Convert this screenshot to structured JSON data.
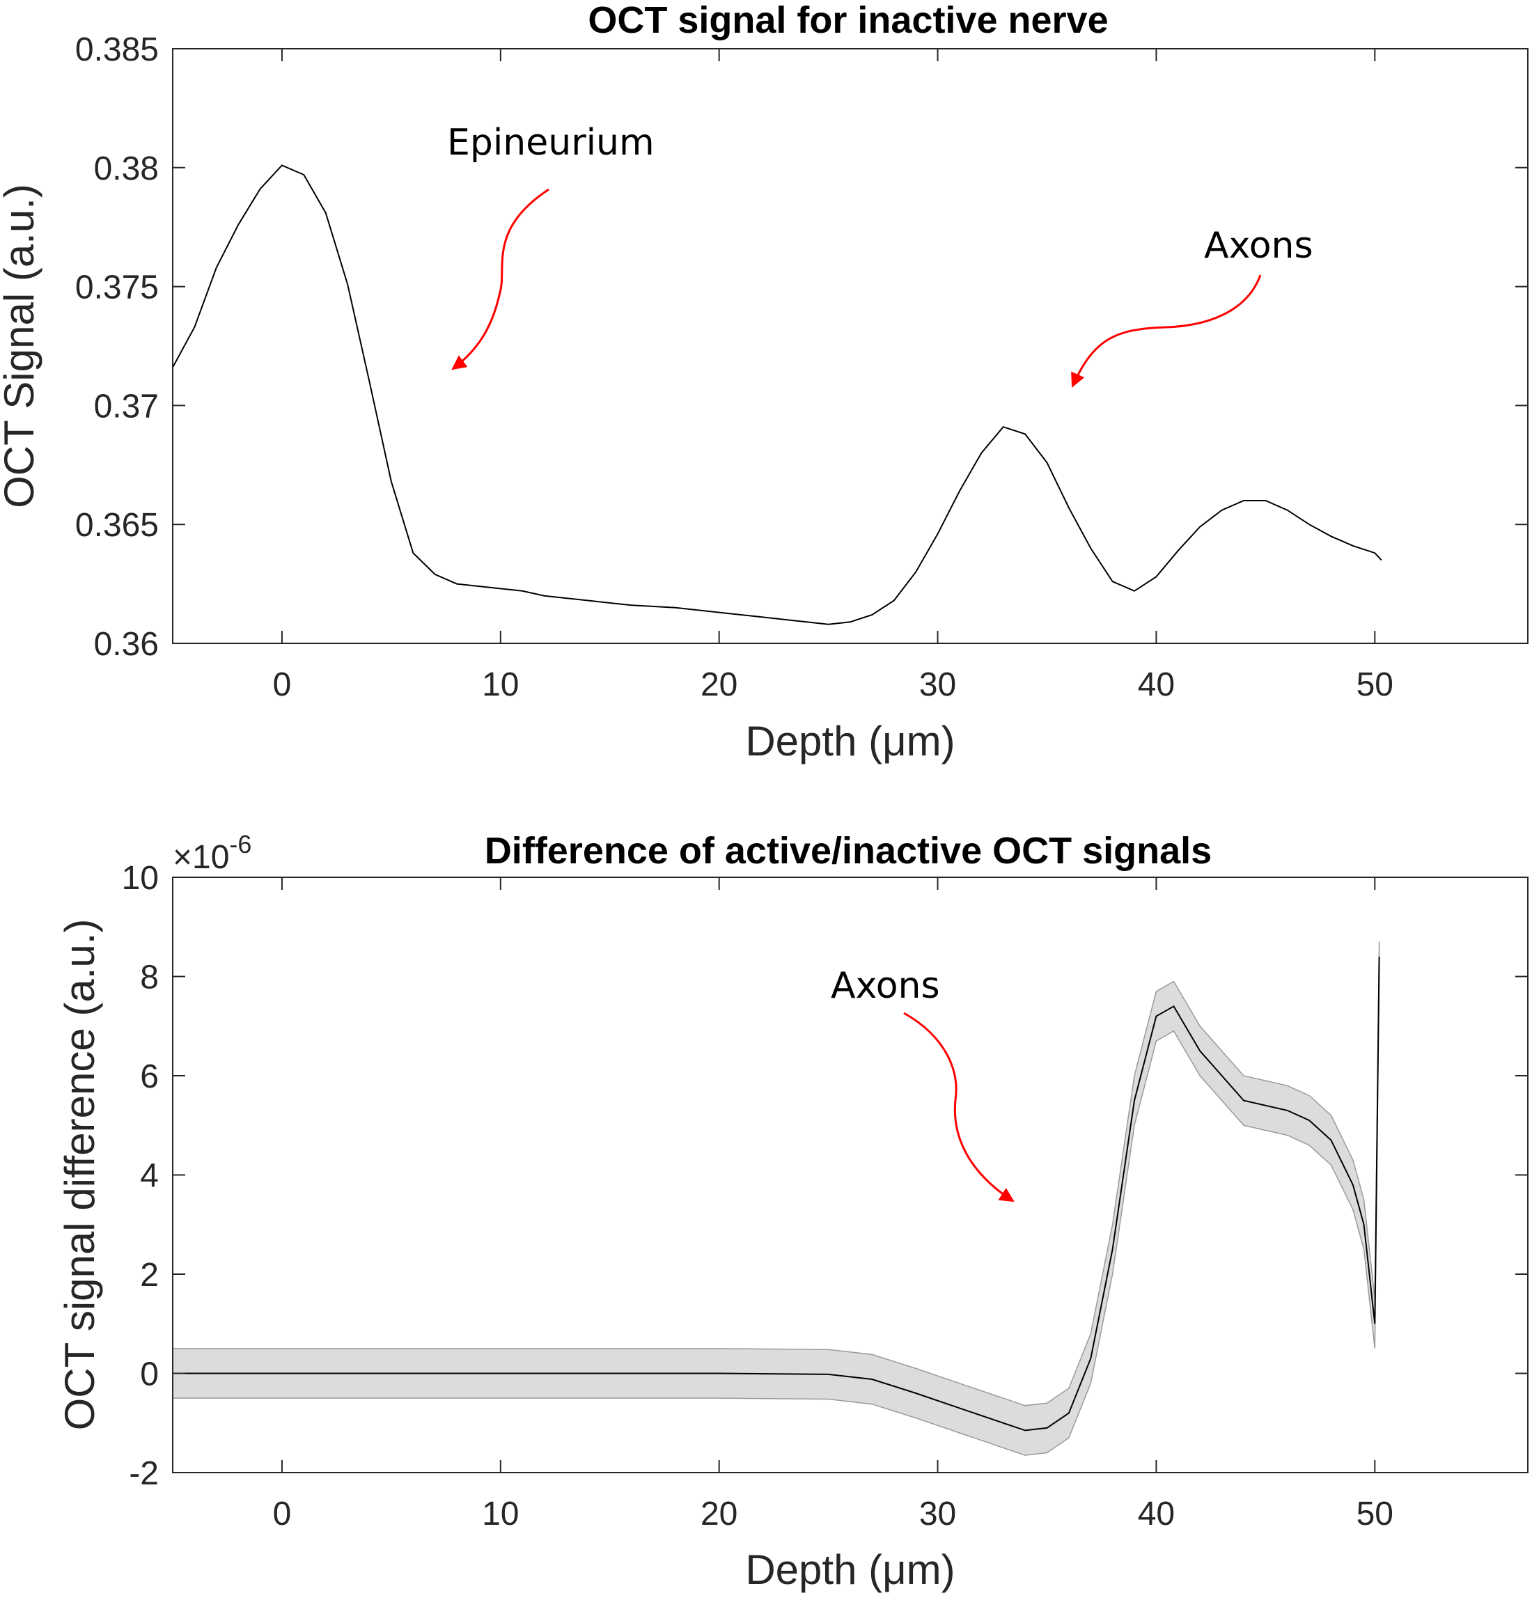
{
  "chart_data": [
    {
      "type": "line",
      "title": "OCT signal for inactive nerve",
      "xlabel": "Depth (μm)",
      "ylabel": "OCT Signal (a.u.)",
      "xlim": [
        -5,
        57
      ],
      "ylim": [
        0.36,
        0.385
      ],
      "xticks": [
        0,
        10,
        20,
        30,
        40,
        50
      ],
      "yticks": [
        0.36,
        0.365,
        0.37,
        0.375,
        0.38,
        0.385
      ],
      "ytick_labels": [
        "0.36",
        "0.365",
        "0.37",
        "0.375",
        "0.38",
        "0.385"
      ],
      "grid": false,
      "series": [
        {
          "color": "#000000",
          "x": [
            -5,
            -4,
            -3,
            -2,
            -1,
            0,
            1,
            2,
            3,
            4,
            5,
            6,
            7,
            8,
            9,
            10,
            11,
            12,
            14,
            16,
            18,
            20,
            22,
            24,
            25,
            26,
            27,
            28,
            29,
            30,
            31,
            32,
            33,
            34,
            35,
            36,
            37,
            38,
            39,
            40,
            41,
            42,
            43,
            44,
            45,
            46,
            47,
            48,
            49,
            50,
            50.3
          ],
          "y": [
            0.3716,
            0.3733,
            0.3758,
            0.3776,
            0.3791,
            0.3801,
            0.3797,
            0.3781,
            0.3751,
            0.371,
            0.3668,
            0.3638,
            0.3629,
            0.3625,
            0.3624,
            0.3623,
            0.3622,
            0.362,
            0.3618,
            0.3616,
            0.3615,
            0.3613,
            0.3611,
            0.3609,
            0.3608,
            0.3609,
            0.3612,
            0.3618,
            0.363,
            0.3646,
            0.3664,
            0.368,
            0.3691,
            0.3688,
            0.3676,
            0.3657,
            0.364,
            0.3626,
            0.3622,
            0.3628,
            0.3639,
            0.3649,
            0.3656,
            0.366,
            0.366,
            0.3656,
            0.365,
            0.3645,
            0.3641,
            0.3638,
            0.3635
          ]
        }
      ],
      "annotations": [
        {
          "text": "Epineurium",
          "color": "#ff0000"
        },
        {
          "text": "Axons",
          "color": "#ff0000"
        }
      ]
    },
    {
      "type": "area",
      "title": "Difference of active/inactive OCT signals",
      "xlabel": "Depth (μm)",
      "ylabel": "OCT signal difference (a.u.)",
      "xlim": [
        -5,
        57
      ],
      "ylim": [
        -2,
        10
      ],
      "y_multiplier": "×10",
      "y_multiplier_exponent": "-6",
      "xticks": [
        0,
        10,
        20,
        30,
        40,
        50
      ],
      "yticks": [
        -2,
        0,
        2,
        4,
        6,
        8,
        10
      ],
      "grid": false,
      "series": [
        {
          "color": "#000000",
          "band_color": "#dcdcdc",
          "x": [
            -5,
            0,
            10,
            20,
            25,
            27,
            29,
            31,
            33,
            34,
            35,
            36,
            37,
            38,
            39,
            40,
            40.8,
            42,
            44,
            46,
            47,
            48,
            49,
            49.5,
            50,
            50.2
          ],
          "y": [
            0,
            0,
            0,
            0,
            -0.02,
            -0.12,
            -0.4,
            -0.7,
            -1.0,
            -1.15,
            -1.1,
            -0.8,
            0.3,
            2.5,
            5.5,
            7.2,
            7.4,
            6.5,
            5.5,
            5.3,
            5.1,
            4.7,
            3.8,
            3.0,
            1.0,
            8.4
          ],
          "band": [
            0.5,
            0.5,
            0.5,
            0.5,
            0.5,
            0.5,
            0.5,
            0.5,
            0.5,
            0.5,
            0.5,
            0.5,
            0.5,
            0.5,
            0.5,
            0.5,
            0.5,
            0.5,
            0.5,
            0.5,
            0.5,
            0.5,
            0.5,
            0.5,
            0.5,
            0.3
          ]
        }
      ],
      "annotations": [
        {
          "text": "Axons",
          "color": "#ff0000"
        }
      ]
    }
  ]
}
